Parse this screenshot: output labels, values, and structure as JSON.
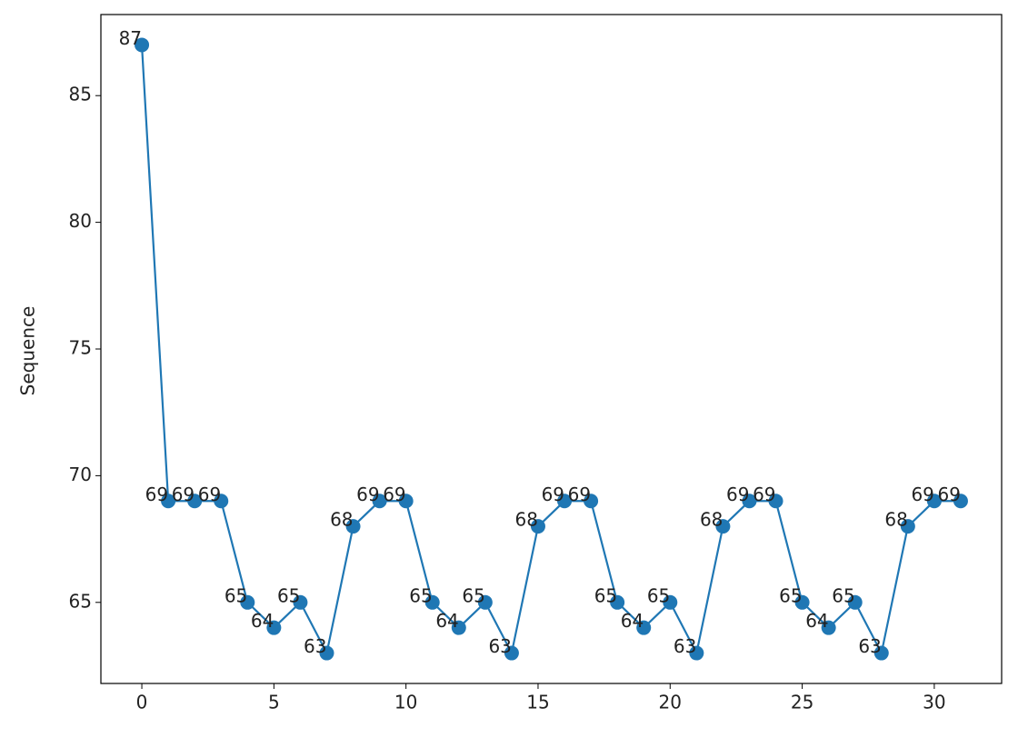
{
  "chart_data": {
    "type": "line",
    "y_label": "Sequence",
    "x": [
      0,
      1,
      2,
      3,
      4,
      5,
      6,
      7,
      8,
      9,
      10,
      11,
      12,
      13,
      14,
      15,
      16,
      17,
      18,
      19,
      20,
      21,
      22,
      23,
      24,
      25,
      26,
      27,
      28,
      29,
      30,
      31
    ],
    "values": [
      87,
      69,
      69,
      69,
      65,
      64,
      65,
      63,
      68,
      69,
      69,
      65,
      64,
      65,
      63,
      68,
      69,
      69,
      65,
      64,
      65,
      63,
      68,
      69,
      69,
      65,
      64,
      65,
      63,
      68,
      69,
      69
    ],
    "color": "#1f77b4",
    "markers": true,
    "data_labels": true,
    "grid": false,
    "xlim": [
      -1.55,
      32.55
    ],
    "xticks": [
      0,
      5,
      10,
      15,
      20,
      25,
      30
    ],
    "ylim": [
      61.8,
      88.2
    ],
    "yticks": [
      65,
      70,
      75,
      80,
      85
    ]
  }
}
